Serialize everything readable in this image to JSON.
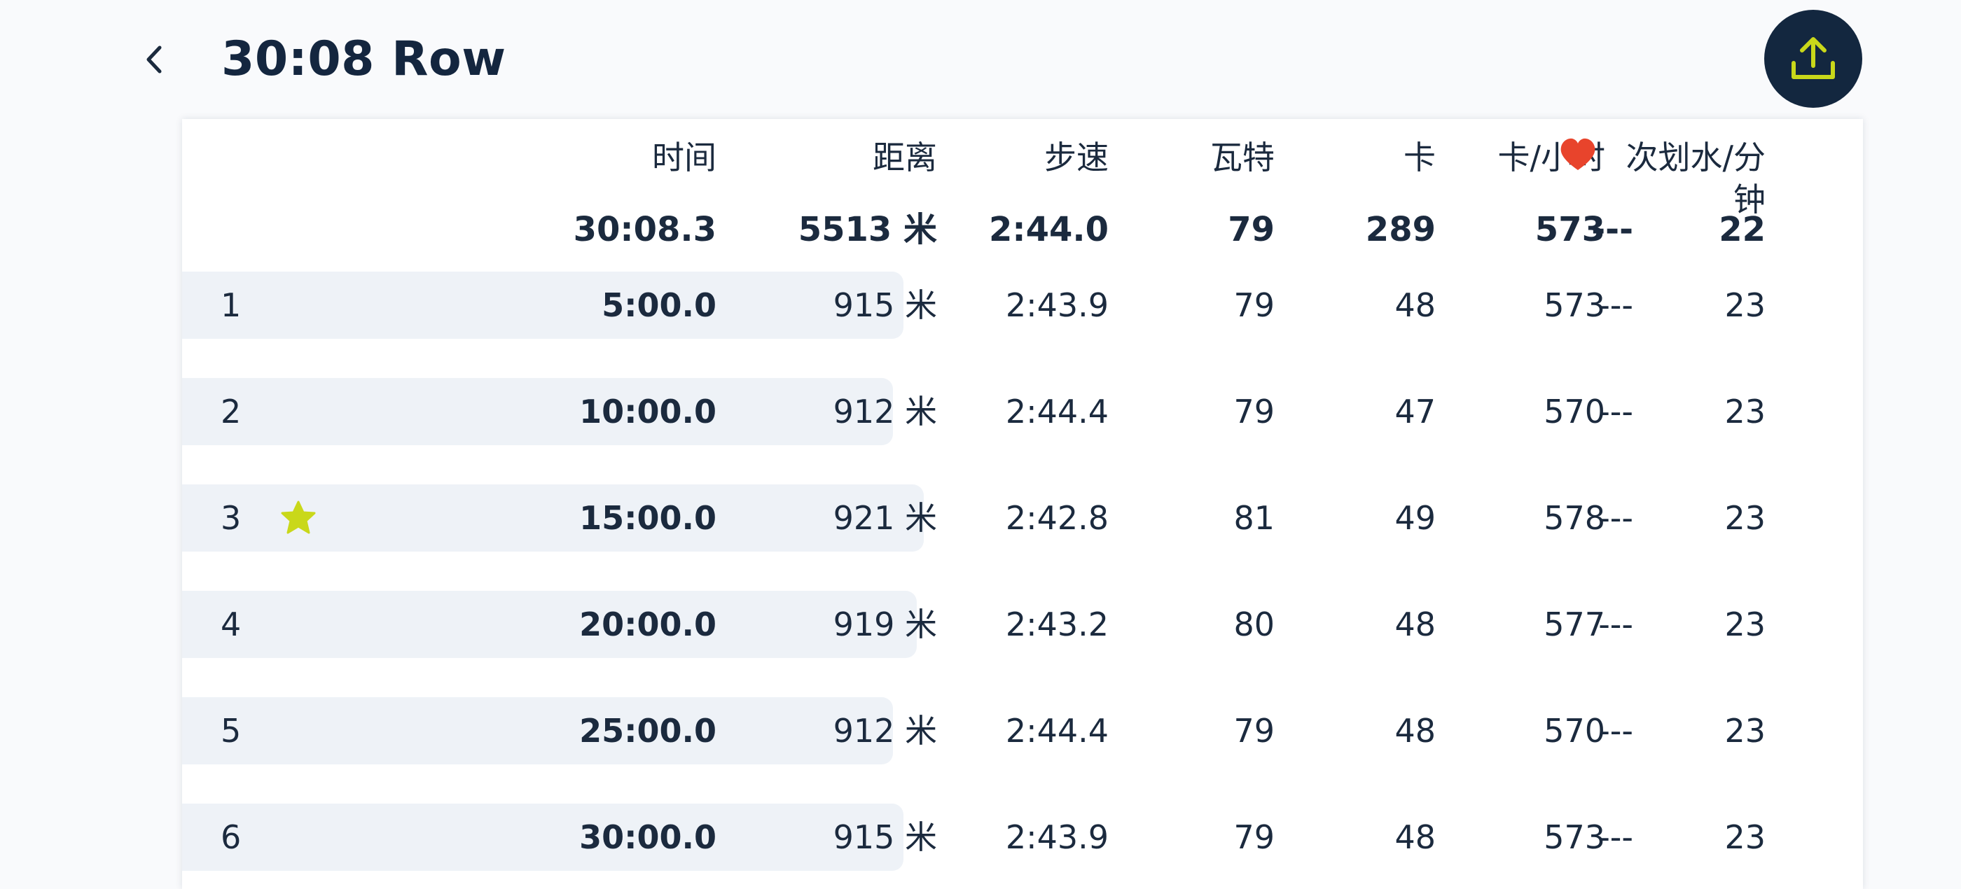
{
  "header": {
    "title": "30:08 Row",
    "back_icon": "chevron-left-icon",
    "share_icon": "upload-icon"
  },
  "colors": {
    "accent": "#c9d81a",
    "dark": "#13273f",
    "row_bar": "#eef2f7",
    "heart": "#e8442c"
  },
  "table": {
    "columns": {
      "time": "时间",
      "distance": "距离",
      "pace": "步速",
      "watts": "瓦特",
      "cal": "卡",
      "cal_hr": "卡/小时",
      "hr_icon": "heart-icon",
      "spm_line1": "次划水/分",
      "spm_line2": "钟"
    },
    "totals": {
      "time": "30:08.3",
      "distance": "5513 米",
      "pace": "2:44.0",
      "watts": "79",
      "cal": "289",
      "cal_hr": "573",
      "hr": "---",
      "spm": "22"
    },
    "rows": [
      {
        "index": "1",
        "star": false,
        "time": "5:00.0",
        "distance": "915 米",
        "pace": "2:43.9",
        "watts": "79",
        "cal": "48",
        "cal_hr": "573",
        "hr": "---",
        "spm": "23",
        "pace_level": 0.976
      },
      {
        "index": "2",
        "star": false,
        "time": "10:00.0",
        "distance": "912 米",
        "pace": "2:44.4",
        "watts": "79",
        "cal": "47",
        "cal_hr": "570",
        "hr": "---",
        "spm": "23",
        "pace_level": 0.973
      },
      {
        "index": "3",
        "star": true,
        "time": "15:00.0",
        "distance": "921 米",
        "pace": "2:42.8",
        "watts": "81",
        "cal": "49",
        "cal_hr": "578",
        "hr": "---",
        "spm": "23",
        "pace_level": 0.982
      },
      {
        "index": "4",
        "star": false,
        "time": "20:00.0",
        "distance": "919 米",
        "pace": "2:43.2",
        "watts": "80",
        "cal": "48",
        "cal_hr": "577",
        "hr": "---",
        "spm": "23",
        "pace_level": 0.98
      },
      {
        "index": "5",
        "star": false,
        "time": "25:00.0",
        "distance": "912 米",
        "pace": "2:44.4",
        "watts": "79",
        "cal": "48",
        "cal_hr": "570",
        "hr": "---",
        "spm": "23",
        "pace_level": 0.973
      },
      {
        "index": "6",
        "star": false,
        "time": "30:00.0",
        "distance": "915 米",
        "pace": "2:43.9",
        "watts": "79",
        "cal": "48",
        "cal_hr": "573",
        "hr": "---",
        "spm": "23",
        "pace_level": 0.976
      }
    ]
  }
}
